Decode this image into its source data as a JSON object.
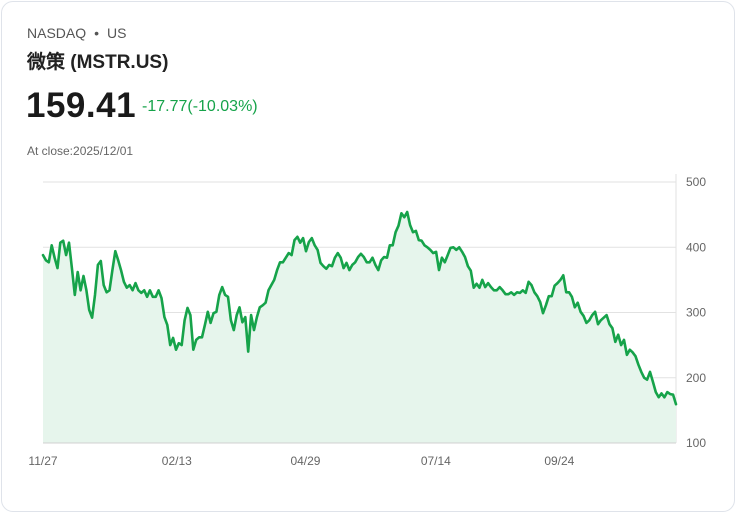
{
  "header": {
    "exchange": "NASDAQ",
    "separator": "•",
    "market": "US",
    "title": "微策 (MSTR.US)",
    "price": "159.41",
    "change": "-17.77(-10.03%)",
    "close_label": "At close:2025/12/01"
  },
  "colors": {
    "line": "#16a34a",
    "fill": "#e6f5ec",
    "grid": "#e2e2e2",
    "up_down": "#16a34a"
  },
  "chart_data": {
    "type": "area",
    "title": "微策 (MSTR.US)",
    "xlabel": "",
    "ylabel": "",
    "ylim": [
      100,
      500
    ],
    "xlim_days": [
      0,
      369
    ],
    "grid": true,
    "y_axis_side": "right",
    "y_ticks": [
      100,
      200,
      300,
      400,
      500
    ],
    "x_ticks": [
      {
        "label": "11/27",
        "day": 0
      },
      {
        "label": "02/13",
        "day": 78
      },
      {
        "label": "04/29",
        "day": 153
      },
      {
        "label": "07/14",
        "day": 229
      },
      {
        "label": "09/24",
        "day": 301
      }
    ],
    "values": [
      388,
      380,
      377,
      403,
      384,
      368,
      407,
      410,
      388,
      407,
      368,
      327,
      362,
      334,
      356,
      334,
      304,
      292,
      327,
      373,
      379,
      342,
      331,
      334,
      365,
      394,
      380,
      365,
      347,
      338,
      342,
      334,
      345,
      334,
      330,
      334,
      324,
      334,
      324,
      324,
      334,
      322,
      293,
      281,
      250,
      261,
      243,
      253,
      250,
      288,
      307,
      296,
      243,
      258,
      262,
      262,
      281,
      301,
      284,
      299,
      301,
      327,
      339,
      327,
      324,
      288,
      273,
      296,
      308,
      285,
      293,
      240,
      296,
      273,
      293,
      308,
      311,
      315,
      334,
      342,
      350,
      365,
      377,
      377,
      384,
      391,
      388,
      411,
      416,
      407,
      414,
      394,
      408,
      414,
      403,
      396,
      376,
      371,
      367,
      373,
      371,
      384,
      391,
      384,
      368,
      376,
      365,
      373,
      377,
      385,
      390,
      385,
      377,
      377,
      384,
      373,
      365,
      380,
      385,
      384,
      403,
      403,
      423,
      433,
      452,
      446,
      454,
      434,
      423,
      425,
      411,
      410,
      403,
      400,
      396,
      391,
      393,
      365,
      384,
      377,
      388,
      399,
      400,
      396,
      400,
      393,
      385,
      371,
      364,
      338,
      344,
      338,
      350,
      339,
      345,
      339,
      334,
      334,
      339,
      334,
      328,
      328,
      331,
      327,
      331,
      330,
      334,
      330,
      347,
      342,
      331,
      325,
      316,
      299,
      311,
      325,
      325,
      341,
      345,
      350,
      357,
      331,
      331,
      324,
      308,
      315,
      301,
      295,
      284,
      288,
      296,
      301,
      282,
      288,
      292,
      296,
      282,
      276,
      255,
      266,
      250,
      258,
      235,
      243,
      239,
      233,
      220,
      209,
      200,
      197,
      209,
      194,
      178,
      170,
      176,
      170,
      178,
      175,
      174,
      159.41
    ]
  }
}
